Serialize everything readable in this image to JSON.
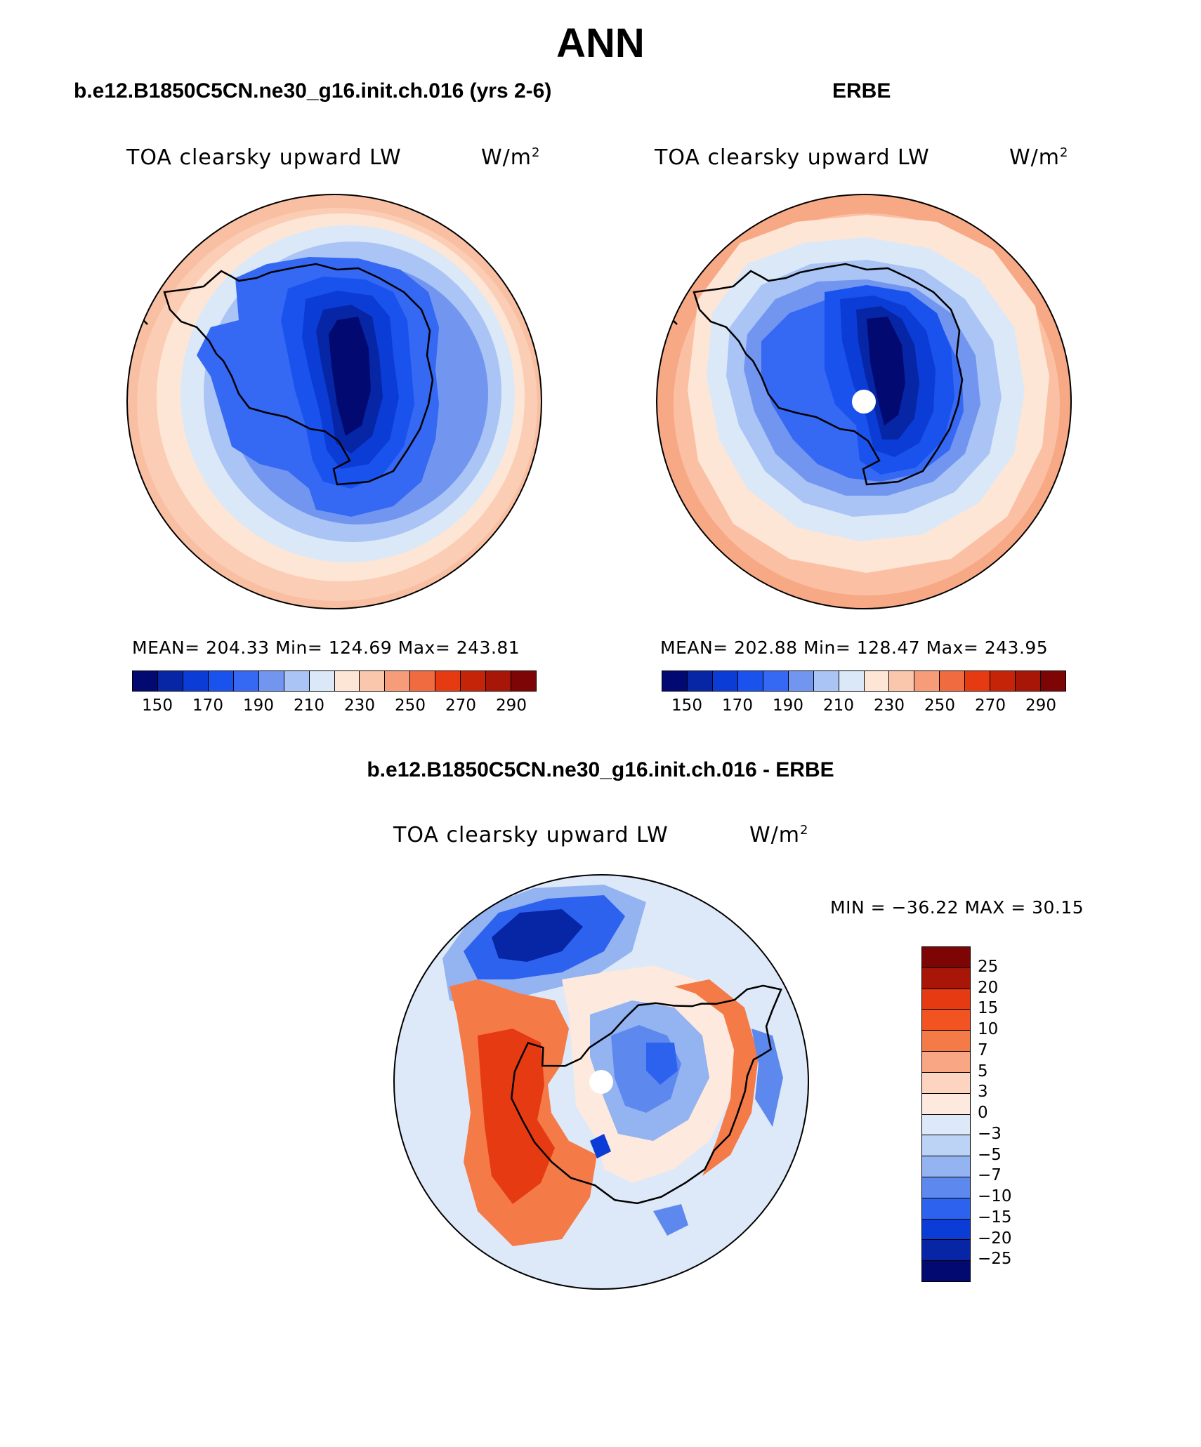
{
  "page_title": "ANN",
  "panels": {
    "model": {
      "case_title": "b.e12.B1850C5CN.ne30_g16.init.ch.016 (yrs 2-6)",
      "variable": "TOA clearsky upward LW",
      "units": "W/m",
      "units_exp": "2",
      "stats": "MEAN= 204.33   Min= 124.69   Max= 243.81"
    },
    "obs": {
      "case_title": "ERBE",
      "variable": "TOA clearsky upward LW",
      "units": "W/m",
      "units_exp": "2",
      "stats": "MEAN= 202.88   Min= 128.47   Max= 243.95"
    },
    "diff": {
      "case_title": "b.e12.B1850C5CN.ne30_g16.init.ch.016 - ERBE",
      "variable": "TOA clearsky upward LW",
      "units": "W/m",
      "units_exp": "2",
      "stats": "MIN = −36.22 MAX =   30.15"
    }
  },
  "colorbar_abs": {
    "colors": [
      "#020a72",
      "#0626a6",
      "#0b3cd6",
      "#1a52ee",
      "#3568f3",
      "#7296f0",
      "#a9c4f5",
      "#dbe8f8",
      "#fde6d6",
      "#fbc7ac",
      "#f79c78",
      "#f16b40",
      "#e63a12",
      "#c52409",
      "#a81607",
      "#7d0505"
    ],
    "ticks": [
      "150",
      "170",
      "190",
      "210",
      "230",
      "250",
      "270",
      "290"
    ]
  },
  "colorbar_diff": {
    "colors": [
      "#7d0505",
      "#a81607",
      "#e63a12",
      "#f25421",
      "#f47a48",
      "#f9a684",
      "#fcd4c0",
      "#fde9dd",
      "#dde9f8",
      "#bcd3f5",
      "#93b3f1",
      "#5d88ee",
      "#2d62ef",
      "#0b3cd6",
      "#0626a6",
      "#020a72"
    ],
    "ticks": [
      "25",
      "20",
      "15",
      "10",
      "7",
      "5",
      "3",
      "0",
      "−3",
      "−5",
      "−7",
      "−10",
      "−15",
      "−20",
      "−25"
    ]
  }
}
